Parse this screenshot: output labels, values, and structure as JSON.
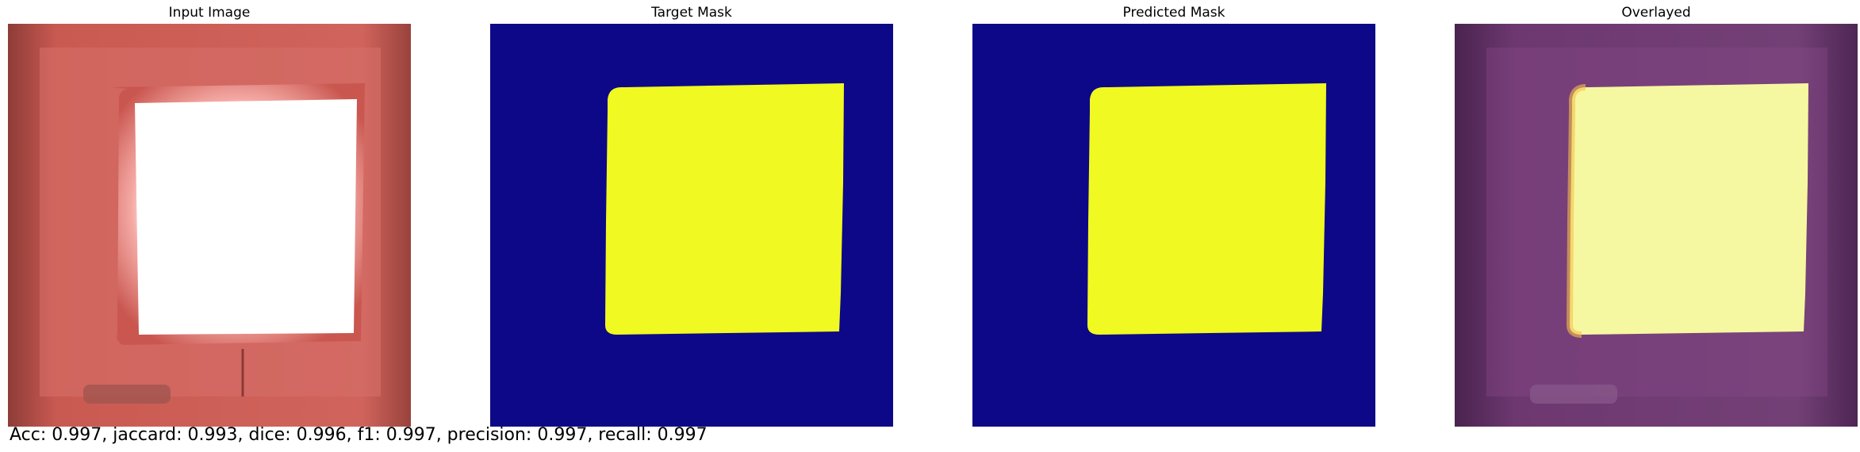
{
  "panels": [
    {
      "title": "Input Image"
    },
    {
      "title": "Target Mask"
    },
    {
      "title": "Predicted Mask"
    },
    {
      "title": "Overlayed"
    }
  ],
  "metrics_text": "Acc: 0.997, jaccard: 0.993, dice: 0.996, f1: 0.997, precision: 0.997, recall: 0.997",
  "colors": {
    "mask_background": "#0d0887",
    "mask_foreground": "#f0f921",
    "input_frame": "#c9564f",
    "input_glow": "#ffffff",
    "overlay_background": "#5a2a5e",
    "overlay_foreground": "#f5f8a0"
  }
}
